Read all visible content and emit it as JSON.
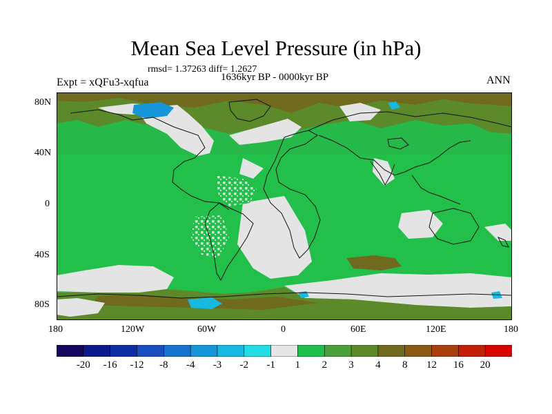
{
  "title": "Mean Sea Level Pressure (in hPa)",
  "stats": "rmsd= 1.37263 diff= 1.2627",
  "period": "1636kyr BP - 0000kyr BP",
  "experiment": "Expt = xQFu3-xqfua",
  "season": "ANN",
  "lat_labels": [
    "80N",
    "40N",
    "0",
    "40S",
    "80S"
  ],
  "lon_labels": [
    "180",
    "120W",
    "60W",
    "0",
    "60E",
    "120E",
    "180"
  ],
  "colorbar": {
    "labels": [
      "-20",
      "-16",
      "-12",
      "-8",
      "-4",
      "-3",
      "-2",
      "-1",
      "1",
      "2",
      "3",
      "4",
      "8",
      "12",
      "16",
      "20"
    ],
    "colors": [
      "#15065e",
      "#0d1a8c",
      "#0f2ea6",
      "#1a4dbf",
      "#1673cf",
      "#1696d8",
      "#19b8e0",
      "#22dde4",
      "#e6e6e6",
      "#1fbf4c",
      "#4aa03a",
      "#5c8a2a",
      "#6f6a1e",
      "#8a5a14",
      "#a8400e",
      "#c22008",
      "#d80400"
    ]
  },
  "map_colors": {
    "ocean": "#22bf4b",
    "land_band": "#27b84a",
    "near_zero": "#e4e4e4",
    "positive_high": "#5c8a2a",
    "positive_higher": "#6f6a1e",
    "negative": "#1696d8",
    "strong_negative": "#19b8e0",
    "coast": "#111111"
  }
}
